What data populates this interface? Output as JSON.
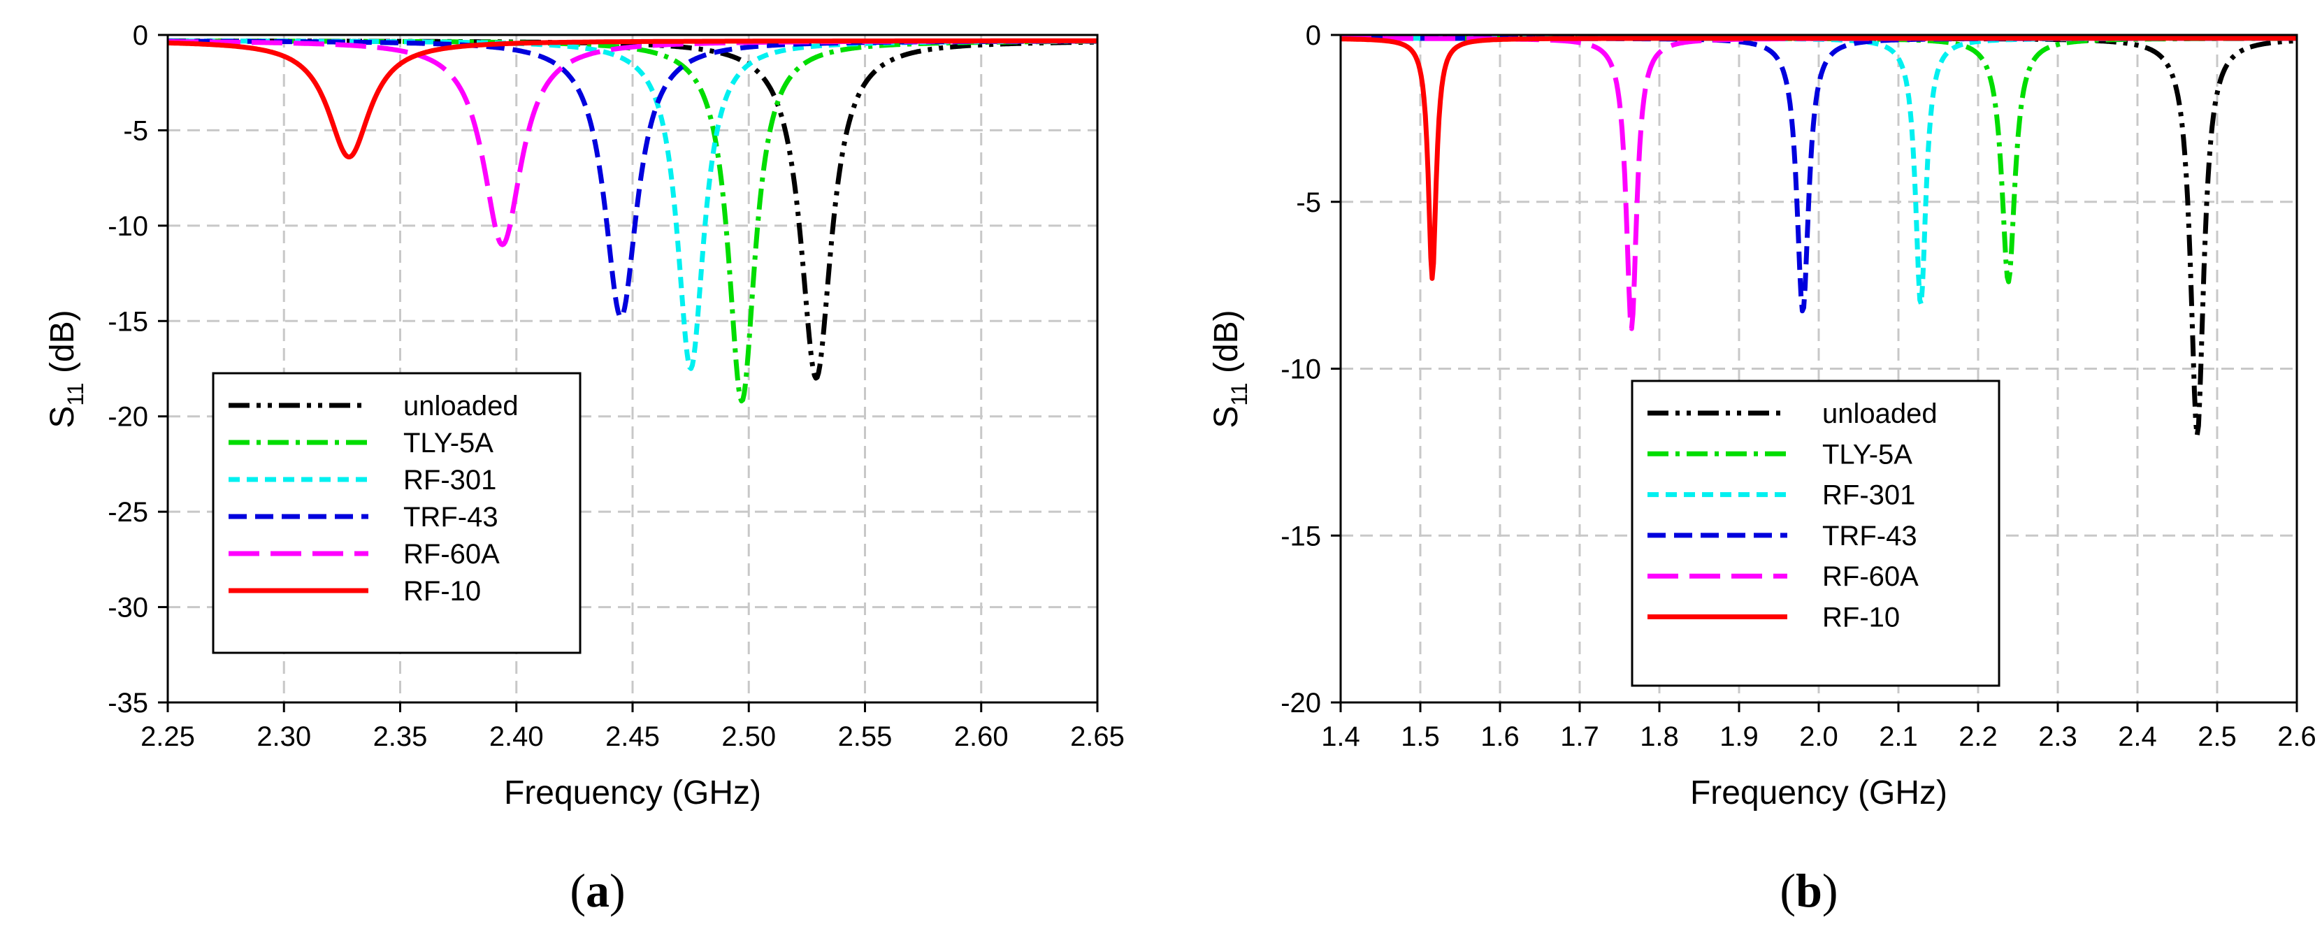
{
  "chart_data": [
    {
      "id": "a",
      "type": "line",
      "panel_label_open": "(",
      "panel_label_letter": "a",
      "panel_label_close": ")",
      "xlabel": "Frequency (GHz)",
      "ylabel_main": "S",
      "ylabel_sub": "11",
      "ylabel_unit": " (dB)",
      "xlim": [
        2.25,
        2.65
      ],
      "ylim": [
        -35,
        0
      ],
      "xticks": [
        "2.25",
        "2.30",
        "2.35",
        "2.40",
        "2.45",
        "2.50",
        "2.55",
        "2.60",
        "2.65"
      ],
      "yticks": [
        "0",
        "-5",
        "-10",
        "-15",
        "-20",
        "-25",
        "-30",
        "-35"
      ],
      "legend_position": "lower-left",
      "series": [
        {
          "name": "unloaded",
          "f0": 2.529,
          "min": -18.0,
          "w": 0.016,
          "base": -0.3
        },
        {
          "name": "TLY-5A",
          "f0": 2.497,
          "min": -19.2,
          "w": 0.014,
          "base": -0.3
        },
        {
          "name": "RF-301",
          "f0": 2.475,
          "min": -17.5,
          "w": 0.014,
          "base": -0.3
        },
        {
          "name": "TRF-43",
          "f0": 2.445,
          "min": -14.8,
          "w": 0.017,
          "base": -0.3
        },
        {
          "name": "RF-60A",
          "f0": 2.394,
          "min": -11.0,
          "w": 0.02,
          "base": -0.3
        },
        {
          "name": "RF-10",
          "f0": 2.328,
          "min": -6.4,
          "w": 0.022,
          "base": -0.3
        }
      ]
    },
    {
      "id": "b",
      "type": "line",
      "panel_label_open": "(",
      "panel_label_letter": "b",
      "panel_label_close": ")",
      "xlabel": "Frequency (GHz)",
      "ylabel_main": "S",
      "ylabel_sub": "11",
      "ylabel_unit": " (dB)",
      "xlim": [
        1.4,
        2.6
      ],
      "ylim": [
        -20,
        0
      ],
      "xticks": [
        "1.4",
        "1.5",
        "1.6",
        "1.7",
        "1.8",
        "1.9",
        "2.0",
        "2.1",
        "2.2",
        "2.3",
        "2.4",
        "2.5",
        "2.6"
      ],
      "yticks": [
        "0",
        "-5",
        "-10",
        "-15",
        "-20"
      ],
      "legend_position": "lower-left",
      "series": [
        {
          "name": "unloaded",
          "f0": 2.475,
          "min": -12.0,
          "w": 0.02,
          "base": -0.1
        },
        {
          "name": "TLY-5A",
          "f0": 2.238,
          "min": -7.4,
          "w": 0.02,
          "base": -0.1
        },
        {
          "name": "RF-301",
          "f0": 2.128,
          "min": -8.1,
          "w": 0.016,
          "base": -0.1
        },
        {
          "name": "TRF-43",
          "f0": 1.98,
          "min": -8.3,
          "w": 0.018,
          "base": -0.1
        },
        {
          "name": "RF-60A",
          "f0": 1.765,
          "min": -8.8,
          "w": 0.016,
          "base": -0.1
        },
        {
          "name": "RF-10",
          "f0": 1.515,
          "min": -7.3,
          "w": 0.012,
          "base": -0.1
        }
      ]
    }
  ],
  "styles": {
    "unloaded": {
      "color": "#000000",
      "dash": "dashdotdot"
    },
    "TLY-5A": {
      "color": "#00dd00",
      "dash": "dashdot"
    },
    "RF-301": {
      "color": "#00f0f0",
      "dash": "shortdash"
    },
    "TRF-43": {
      "color": "#0000dd",
      "dash": "dash"
    },
    "RF-60A": {
      "color": "#ff00ff",
      "dash": "longdash"
    },
    "RF-10": {
      "color": "#ff0000",
      "dash": "solid"
    }
  }
}
